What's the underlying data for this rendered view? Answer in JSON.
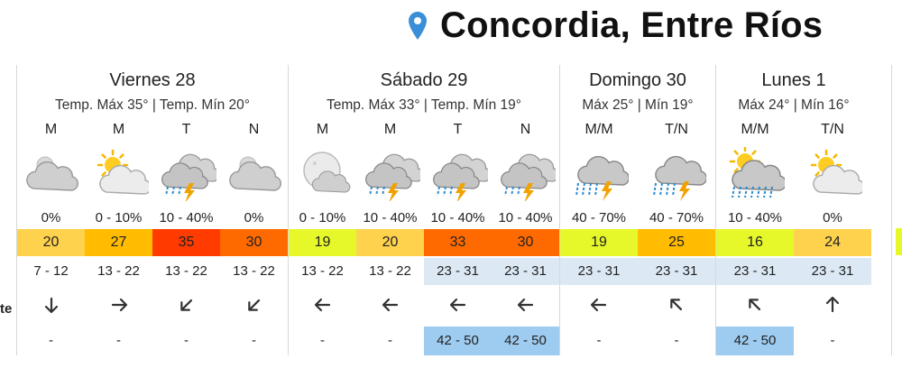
{
  "location": {
    "name": "Concordia, Entre Ríos",
    "icon": "map-pin-icon",
    "pin_color": "#3a8fd8"
  },
  "left_label": "te",
  "days": [
    {
      "name": "Viernes 28",
      "temps": "Temp. Máx 35° | Temp. Mín 20°",
      "periods": [
        {
          "slot": "M",
          "icon": "cloudy-night-icon",
          "precip": "0%",
          "temp": "20",
          "temp_color": "#ffd24d",
          "wind": "7 - 12",
          "wind_blue": false,
          "dir": "arrow-down-icon",
          "dir_deg": 180,
          "gust": "-",
          "gust_blue": false
        },
        {
          "slot": "M",
          "icon": "partly-cloudy-day-icon",
          "precip": "0 - 10%",
          "temp": "27",
          "temp_color": "#ffbc00",
          "wind": "13 - 22",
          "wind_blue": false,
          "dir": "arrow-right-icon",
          "dir_deg": 90,
          "gust": "-",
          "gust_blue": false
        },
        {
          "slot": "T",
          "icon": "thunderstorm-icon",
          "precip": "10 - 40%",
          "temp": "35",
          "temp_color": "#ff3b00",
          "wind": "13 - 22",
          "wind_blue": false,
          "dir": "arrow-down-left-icon",
          "dir_deg": 225,
          "gust": "-",
          "gust_blue": false
        },
        {
          "slot": "N",
          "icon": "cloudy-night-icon",
          "precip": "0%",
          "temp": "30",
          "temp_color": "#ff6a00",
          "wind": "13 - 22",
          "wind_blue": false,
          "dir": "arrow-down-left-icon",
          "dir_deg": 225,
          "gust": "-",
          "gust_blue": false
        }
      ]
    },
    {
      "name": "Sábado 29",
      "temps": "Temp. Máx 33° | Temp. Mín 19°",
      "periods": [
        {
          "slot": "M",
          "icon": "cloudy-moon-icon",
          "precip": "0 - 10%",
          "temp": "19",
          "temp_color": "#e6f82a",
          "wind": "13 - 22",
          "wind_blue": false,
          "dir": "arrow-left-icon",
          "dir_deg": 270,
          "gust": "-",
          "gust_blue": false
        },
        {
          "slot": "M",
          "icon": "thunderstorm-icon",
          "precip": "10 - 40%",
          "temp": "20",
          "temp_color": "#ffd24d",
          "wind": "13 - 22",
          "wind_blue": false,
          "dir": "arrow-left-icon",
          "dir_deg": 270,
          "gust": "-",
          "gust_blue": false
        },
        {
          "slot": "T",
          "icon": "thunderstorm-icon",
          "precip": "10 - 40%",
          "temp": "33",
          "temp_color": "#ff6a00",
          "wind": "23 - 31",
          "wind_blue": true,
          "dir": "arrow-left-icon",
          "dir_deg": 270,
          "gust": "42 - 50",
          "gust_blue": true
        },
        {
          "slot": "N",
          "icon": "thunderstorm-icon",
          "precip": "10 - 40%",
          "temp": "30",
          "temp_color": "#ff6a00",
          "wind": "23 - 31",
          "wind_blue": true,
          "dir": "arrow-left-icon",
          "dir_deg": 270,
          "gust": "42 - 50",
          "gust_blue": true
        }
      ]
    },
    {
      "name": "Domingo 30",
      "temps": "Máx 25° | Mín 19°",
      "periods": [
        {
          "slot": "M/M",
          "icon": "thunderstorm-rain-icon",
          "precip": "40 - 70%",
          "temp": "19",
          "temp_color": "#e6f82a",
          "wind": "23 - 31",
          "wind_blue": true,
          "dir": "arrow-left-icon",
          "dir_deg": 270,
          "gust": "-",
          "gust_blue": false
        },
        {
          "slot": "T/N",
          "icon": "thunderstorm-rain-icon",
          "precip": "40 - 70%",
          "temp": "25",
          "temp_color": "#ffbc00",
          "wind": "23 - 31",
          "wind_blue": true,
          "dir": "arrow-up-left-icon",
          "dir_deg": 315,
          "gust": "-",
          "gust_blue": false
        }
      ]
    },
    {
      "name": "Lunes 1",
      "temps": "Máx 24° | Mín 16°",
      "periods": [
        {
          "slot": "M/M",
          "icon": "heavy-rain-icon",
          "precip": "10 - 40%",
          "temp": "16",
          "temp_color": "#e6f82a",
          "wind": "23 - 31",
          "wind_blue": true,
          "dir": "arrow-up-left-icon",
          "dir_deg": 315,
          "gust": "42 - 50",
          "gust_blue": true
        },
        {
          "slot": "T/N",
          "icon": "partly-cloudy-day-icon",
          "precip": "0%",
          "temp": "24",
          "temp_color": "#ffd24d",
          "wind": "23 - 31",
          "wind_blue": true,
          "dir": "arrow-up-icon",
          "dir_deg": 0,
          "gust": "-",
          "gust_blue": false
        }
      ]
    }
  ]
}
